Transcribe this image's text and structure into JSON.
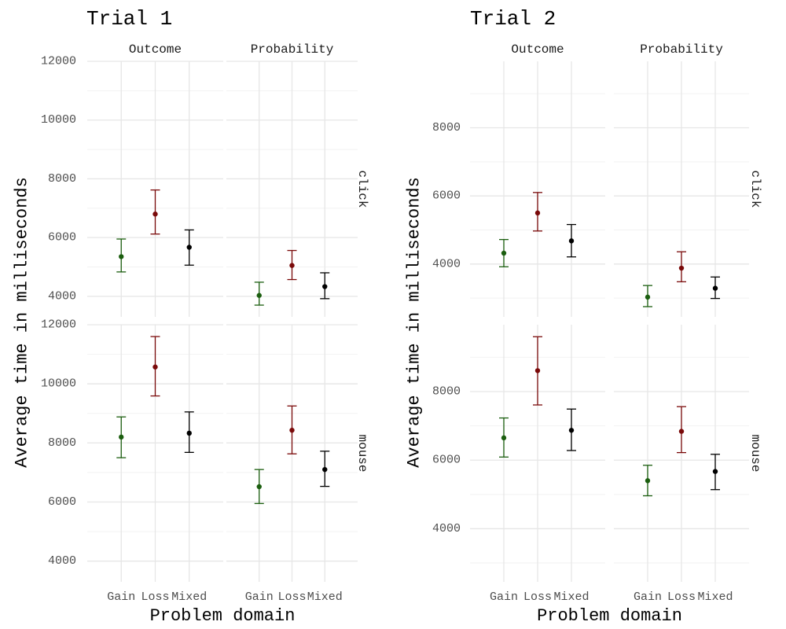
{
  "chart_data": [
    {
      "type": "scatter",
      "title": "Trial 1",
      "xlabel": "Problem domain",
      "ylabel": "Average time in milliseconds",
      "columns": [
        "Outcome",
        "Probability"
      ],
      "rows": [
        "click",
        "mouse"
      ],
      "categories": [
        "Gain",
        "Loss",
        "Mixed"
      ],
      "colors": [
        "#1b5e0f",
        "#7a0a0a",
        "#000000"
      ],
      "ylim": [
        3300,
        12000
      ],
      "yticks": [
        4000,
        6000,
        8000,
        10000,
        12000
      ],
      "panels": [
        {
          "column": "Outcome",
          "row": "click",
          "mean": [
            5350,
            6800,
            5670
          ],
          "lower": [
            4830,
            6120,
            5060
          ],
          "upper": [
            5950,
            7620,
            6260
          ]
        },
        {
          "column": "Probability",
          "row": "click",
          "mean": [
            4030,
            5050,
            4330
          ],
          "lower": [
            3700,
            4570,
            3920
          ],
          "upper": [
            4480,
            5560,
            4800
          ]
        },
        {
          "column": "Outcome",
          "row": "mouse",
          "mean": [
            8200,
            10570,
            8330
          ],
          "lower": [
            7500,
            9590,
            7680
          ],
          "upper": [
            8880,
            11600,
            9050
          ]
        },
        {
          "column": "Probability",
          "row": "mouse",
          "mean": [
            6520,
            8430,
            7100
          ],
          "lower": [
            5950,
            7630,
            6530
          ],
          "upper": [
            7100,
            9250,
            7720
          ]
        }
      ]
    },
    {
      "type": "scatter",
      "title": "Trial 2",
      "xlabel": "Problem domain",
      "ylabel": "Average time in milliseconds",
      "columns": [
        "Outcome",
        "Probability"
      ],
      "rows": [
        "click",
        "mouse"
      ],
      "categories": [
        "Gain",
        "Loss",
        "Mixed"
      ],
      "colors": [
        "#1b5e0f",
        "#7a0a0a",
        "#000000"
      ],
      "ylim": [
        2450,
        9950
      ],
      "yticks": [
        4000,
        6000,
        8000
      ],
      "panels": [
        {
          "column": "Outcome",
          "row": "click",
          "mean": [
            4320,
            5500,
            4680
          ],
          "lower": [
            3920,
            4970,
            4210
          ],
          "upper": [
            4720,
            6100,
            5160
          ]
        },
        {
          "column": "Probability",
          "row": "click",
          "mean": [
            3030,
            3880,
            3290
          ],
          "lower": [
            2750,
            3480,
            2990
          ],
          "upper": [
            3370,
            4360,
            3620
          ]
        },
        {
          "column": "Outcome",
          "row": "mouse",
          "mean": [
            6650,
            8610,
            6870
          ],
          "lower": [
            6090,
            7610,
            6280
          ],
          "upper": [
            7230,
            9600,
            7490
          ]
        },
        {
          "column": "Probability",
          "row": "mouse",
          "mean": [
            5400,
            6840,
            5670
          ],
          "lower": [
            4960,
            6220,
            5140
          ],
          "upper": [
            5850,
            7560,
            6170
          ]
        }
      ]
    }
  ]
}
